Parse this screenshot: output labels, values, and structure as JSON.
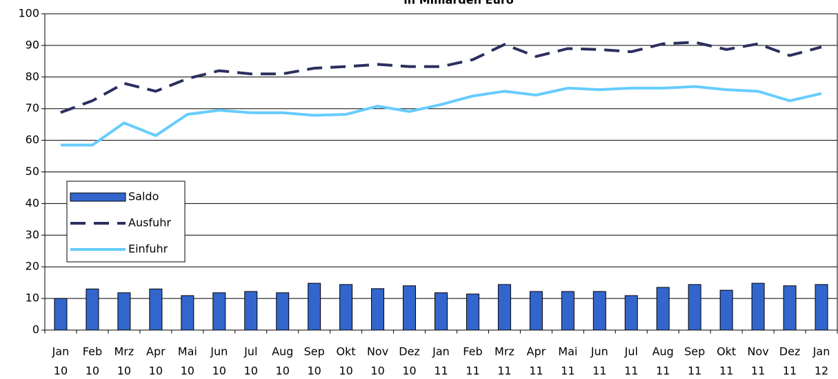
{
  "chart_data": {
    "type": "combo",
    "title": "in Milliarden Euro",
    "categories": [
      [
        "Jan",
        "10"
      ],
      [
        "Feb",
        "10"
      ],
      [
        "Mrz",
        "10"
      ],
      [
        "Apr",
        "10"
      ],
      [
        "Mai",
        "10"
      ],
      [
        "Jun",
        "10"
      ],
      [
        "Jul",
        "10"
      ],
      [
        "Aug",
        "10"
      ],
      [
        "Sep",
        "10"
      ],
      [
        "Okt",
        "10"
      ],
      [
        "Nov",
        "10"
      ],
      [
        "Dez",
        "10"
      ],
      [
        "Jan",
        "11"
      ],
      [
        "Feb",
        "11"
      ],
      [
        "Mrz",
        "11"
      ],
      [
        "Apr",
        "11"
      ],
      [
        "Mai",
        "11"
      ],
      [
        "Jun",
        "11"
      ],
      [
        "Jul",
        "11"
      ],
      [
        "Aug",
        "11"
      ],
      [
        "Sep",
        "11"
      ],
      [
        "Okt",
        "11"
      ],
      [
        "Nov",
        "11"
      ],
      [
        "Dez",
        "11"
      ],
      [
        "Jan",
        "12"
      ]
    ],
    "series": [
      {
        "name": "Saldo",
        "type": "bar",
        "color": "#3366cc",
        "values": [
          10,
          13,
          11.8,
          13,
          10.9,
          11.8,
          12.2,
          11.8,
          14.8,
          14.4,
          13.1,
          14,
          11.8,
          11.4,
          14.4,
          12.2,
          12.2,
          12.2,
          10.9,
          13.5,
          14.4,
          12.6,
          14.8,
          14,
          14.4
        ]
      },
      {
        "name": "Ausfuhr",
        "type": "line",
        "style": "dashed",
        "color": "#2b2f5e",
        "values": [
          68.8,
          72.5,
          78,
          75.5,
          79.5,
          82,
          81,
          81,
          82.8,
          83.3,
          84,
          83.3,
          83.3,
          85.5,
          90.3,
          86.5,
          89,
          88.7,
          88,
          90.5,
          91,
          88.7,
          90.5,
          86.8,
          89.5
        ]
      },
      {
        "name": "Einfuhr",
        "type": "line",
        "style": "solid",
        "color": "#66ccff",
        "values": [
          58.5,
          58.5,
          65.5,
          61.5,
          68.2,
          69.5,
          68.7,
          68.7,
          67.9,
          68.2,
          70.8,
          69.1,
          71.3,
          74,
          75.5,
          74.3,
          76.5,
          76,
          76.5,
          76.5,
          77,
          76,
          75.5,
          72.5,
          74.8
        ]
      }
    ],
    "ylim": [
      0,
      100
    ],
    "yticks": [
      0,
      10,
      20,
      30,
      40,
      50,
      60,
      70,
      80,
      90,
      100
    ],
    "grid": true,
    "legend": "left"
  }
}
